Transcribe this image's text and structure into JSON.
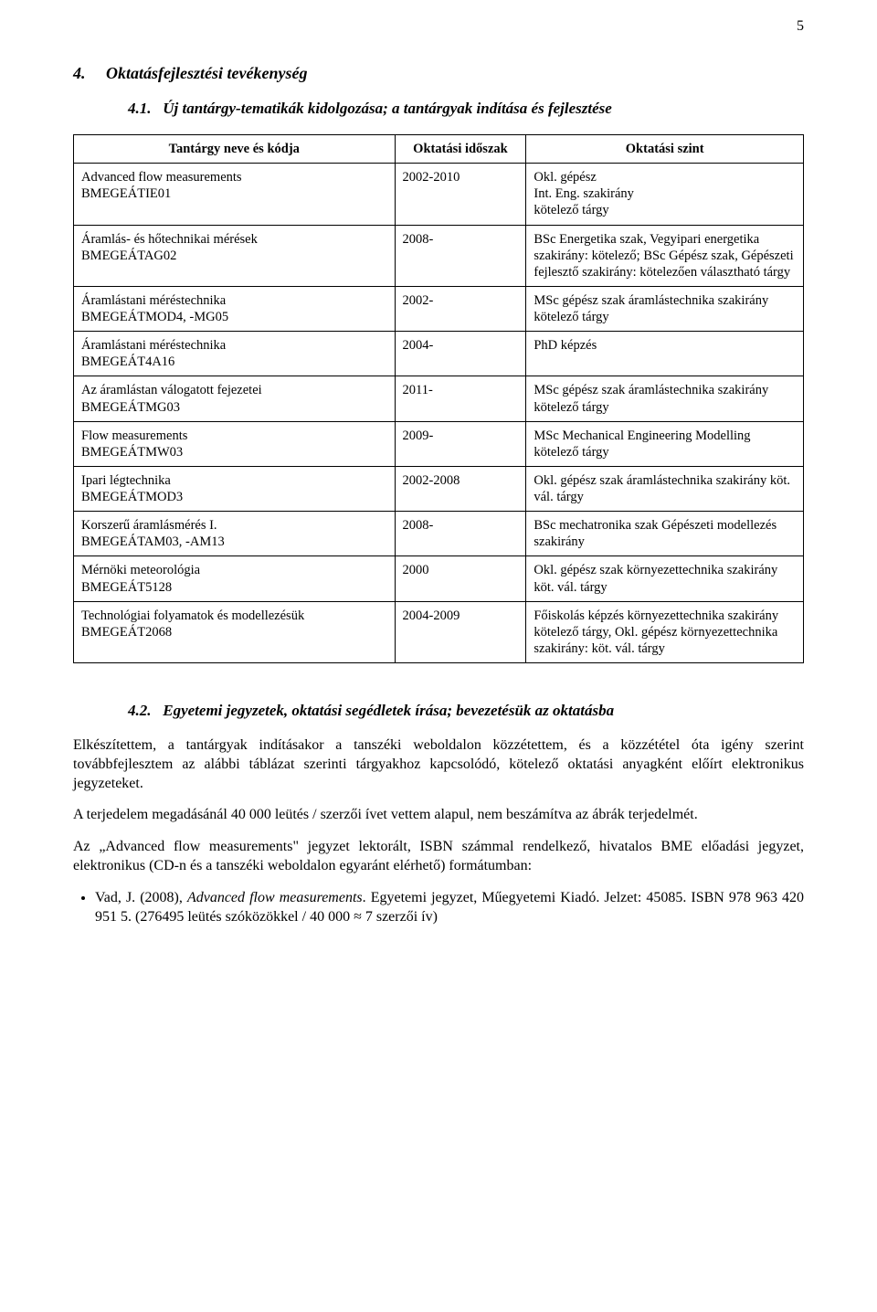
{
  "page_number": "5",
  "section4": {
    "number": "4.",
    "title": "Oktatásfejlesztési tevékenység",
    "sub41": {
      "number": "4.1.",
      "title": "Új tantárgy-tematikák kidolgozása; a tantárgyak indítása és fejlesztése"
    },
    "sub42": {
      "number": "4.2.",
      "title": "Egyetemi jegyzetek, oktatási segédletek írása; bevezetésük az oktatásba"
    }
  },
  "table": {
    "headers": {
      "name": "Tantárgy neve és kódja",
      "period": "Oktatási időszak",
      "level": "Oktatási szint"
    },
    "rows": [
      {
        "name": "Advanced flow measurements\nBMEGEÁTIE01",
        "period": "2002-2010",
        "level": "Okl. gépész\nInt. Eng. szakirány\nkötelező tárgy"
      },
      {
        "name": "Áramlás- és hőtechnikai mérések\nBMEGEÁTAG02",
        "period": "2008-",
        "level": "BSc Energetika szak, Vegyipari energetika szakirány: kötelező; BSc Gépész szak, Gépészeti fejlesztő szakirány: kötelezően választható tárgy"
      },
      {
        "name": "Áramlástani méréstechnika\nBMEGEÁTMOD4, -MG05",
        "period": "2002-",
        "level": "MSc gépész szak áramlástechnika szakirány kötelező tárgy"
      },
      {
        "name": "Áramlástani méréstechnika\nBMEGEÁT4A16",
        "period": "2004-",
        "level": "PhD képzés"
      },
      {
        "name": "Az áramlástan válogatott fejezetei\nBMEGEÁTMG03",
        "period": "2011-",
        "level": "MSc gépész szak áramlástechnika szakirány kötelező tárgy"
      },
      {
        "name": "Flow measurements\nBMEGEÁTMW03",
        "period": "2009-",
        "level": "MSc Mechanical Engineering Modelling kötelező tárgy"
      },
      {
        "name": "Ipari légtechnika\nBMEGEÁTMOD3",
        "period": "2002-2008",
        "level": "Okl. gépész szak áramlástechnika szakirány köt. vál. tárgy"
      },
      {
        "name": "Korszerű áramlásmérés I.\nBMEGEÁTAM03, -AM13",
        "period": "2008-",
        "level": "BSc mechatronika szak Gépészeti modellezés szakirány"
      },
      {
        "name": "Mérnöki meteorológia\nBMEGEÁT5128",
        "period": "2000",
        "level": "Okl. gépész szak környezettechnika szakirány köt. vál. tárgy"
      },
      {
        "name": "Technológiai folyamatok és modellezésük\nBMEGEÁT2068",
        "period": "2004-2009",
        "level": "Főiskolás képzés környezettechnika szakirány kötelező tárgy, Okl. gépész környezettechnika szakirány: köt. vál. tárgy"
      }
    ]
  },
  "paras": {
    "p1": "Elkészítettem, a tantárgyak indításakor a tanszéki weboldalon közzétettem, és a közzététel óta igény szerint továbbfejlesztem az alábbi táblázat szerinti tárgyakhoz kapcsolódó, kötelező oktatási anyagként előírt elektronikus jegyzeteket.",
    "p2": "A terjedelem megadásánál 40 000 leütés / szerzői ívet vettem alapul, nem beszámítva az ábrák terjedelmét.",
    "p3": "Az „Advanced flow measurements\" jegyzet lektorált, ISBN számmal rendelkező, hivatalos BME előadási jegyzet, elektronikus (CD-n és a tanszéki weboldalon egyaránt elérhető) formátumban:"
  },
  "ref": {
    "author": "Vad, J. (2008), ",
    "title_italic": "Advanced flow measurements",
    "tail": ". Egyetemi jegyzet, Műegyetemi Kiadó. Jelzet: 45085. ISBN 978 963 420 951 5. (276495 leütés szóközökkel / 40 000 ≈ 7 szerzői ív)"
  }
}
